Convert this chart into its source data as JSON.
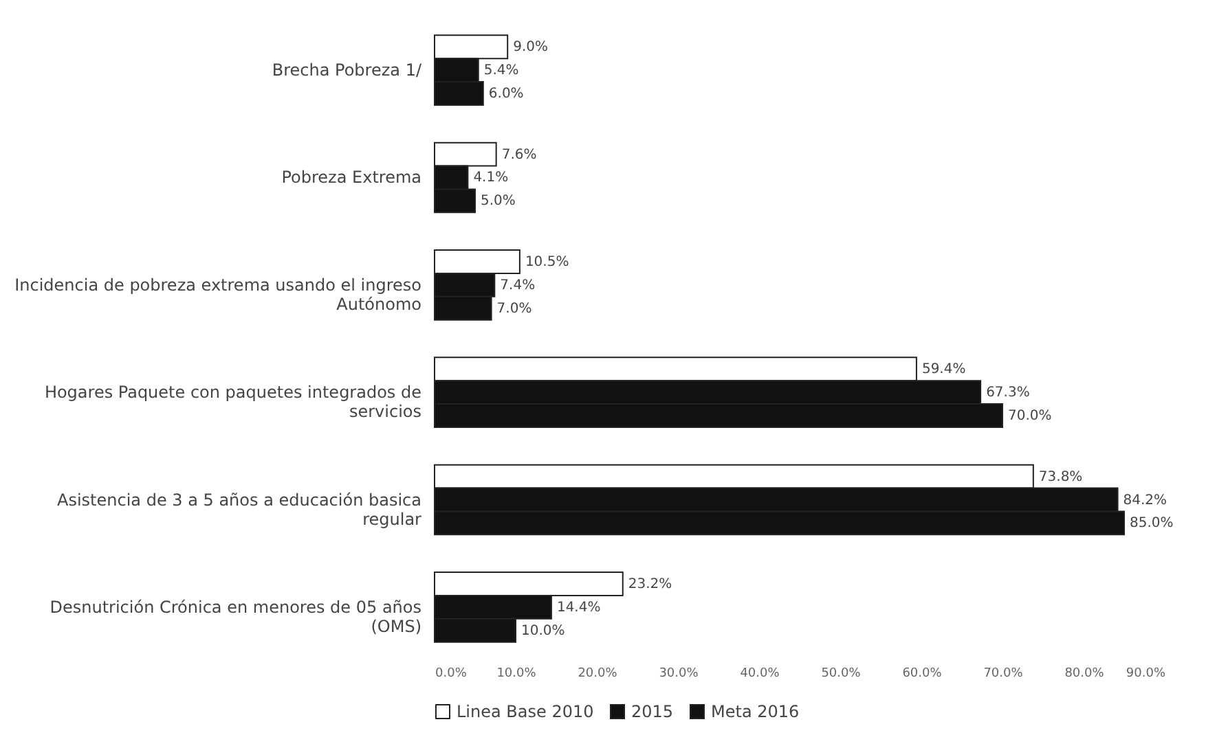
{
  "chart_data": {
    "type": "bar",
    "orientation": "horizontal",
    "categories": [
      "Brecha Pobreza 1/",
      "Pobreza Extrema",
      "Incidencia de pobreza extrema usando el ingreso Autónomo",
      "Hogares Paquete con paquetes integrados de servicios",
      "Asistencia de 3 a 5 años a educación basica regular",
      "Desnutrición Crónica en menores de 05 años (OMS)"
    ],
    "series": [
      {
        "name": "Linea Base 2010",
        "color": "#ffffff",
        "values": [
          9.0,
          7.6,
          10.5,
          59.4,
          73.8,
          23.2
        ],
        "value_labels": [
          "9.0%",
          "7.6%",
          "10.5%",
          "59.4%",
          "73.8%",
          "23.2%"
        ]
      },
      {
        "name": "2015",
        "color": "#111111",
        "values": [
          5.4,
          4.1,
          7.4,
          67.3,
          84.2,
          14.4
        ],
        "value_labels": [
          "5.4%",
          "4.1%",
          "7.4%",
          "67.3%",
          "84.2%",
          "14.4%"
        ]
      },
      {
        "name": "Meta 2016",
        "color": "#111111",
        "values": [
          6.0,
          5.0,
          7.0,
          70.0,
          85.0,
          10.0
        ],
        "value_labels": [
          "6.0%",
          "5.0%",
          "7.0%",
          "70.0%",
          "85.0%",
          "10.0%"
        ]
      }
    ],
    "xlim": [
      0,
      90
    ],
    "xticks": [
      {
        "value": 0,
        "label": "0.0%"
      },
      {
        "value": 10,
        "label": "10.0%"
      },
      {
        "value": 20,
        "label": "20.0%"
      },
      {
        "value": 30,
        "label": "30.0%"
      },
      {
        "value": 40,
        "label": "40.0%"
      },
      {
        "value": 50,
        "label": "50.0%"
      },
      {
        "value": 60,
        "label": "60.0%"
      },
      {
        "value": 70,
        "label": "70.0%"
      },
      {
        "value": 80,
        "label": "80.0%"
      },
      {
        "value": 90,
        "label": "90.0%"
      }
    ],
    "grid": false,
    "legend": "bottom"
  }
}
